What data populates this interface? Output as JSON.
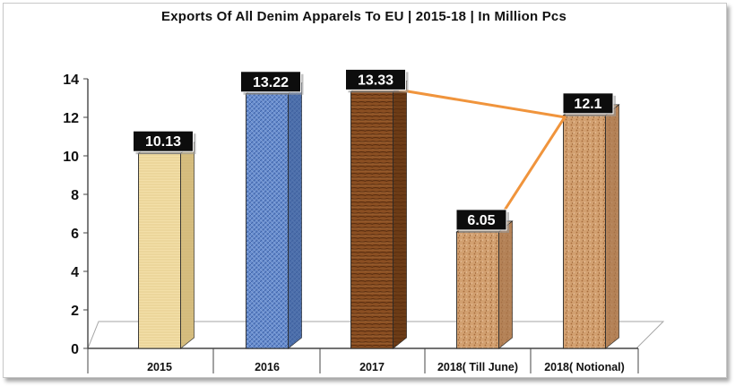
{
  "chart_data": {
    "type": "bar",
    "title": "Exports Of All Denim Apparels To EU | 2015-18 | In Million Pcs",
    "categories": [
      "2015",
      "2016",
      "2017",
      "2018( Till June)",
      "2018( Notional)"
    ],
    "values": [
      10.13,
      13.22,
      13.33,
      6.05,
      12.1
    ],
    "value_labels": [
      "10.13",
      "13.22",
      "13.33",
      "6.05",
      "12.1"
    ],
    "ylim": [
      0,
      14
    ],
    "yticks": [
      "0",
      "2",
      "4",
      "6",
      "8",
      "10",
      "12",
      "14"
    ],
    "grid": false,
    "legend": "none",
    "bar_colors": [
      "#f0dba3",
      "#5f86c9",
      "#8a4d1f",
      "#cf9a6e",
      "#cf9a6e"
    ],
    "trend_line": {
      "from": "2017",
      "via": "2018( Notional)",
      "to": "2018( Till June)",
      "color": "#f0943c"
    }
  }
}
